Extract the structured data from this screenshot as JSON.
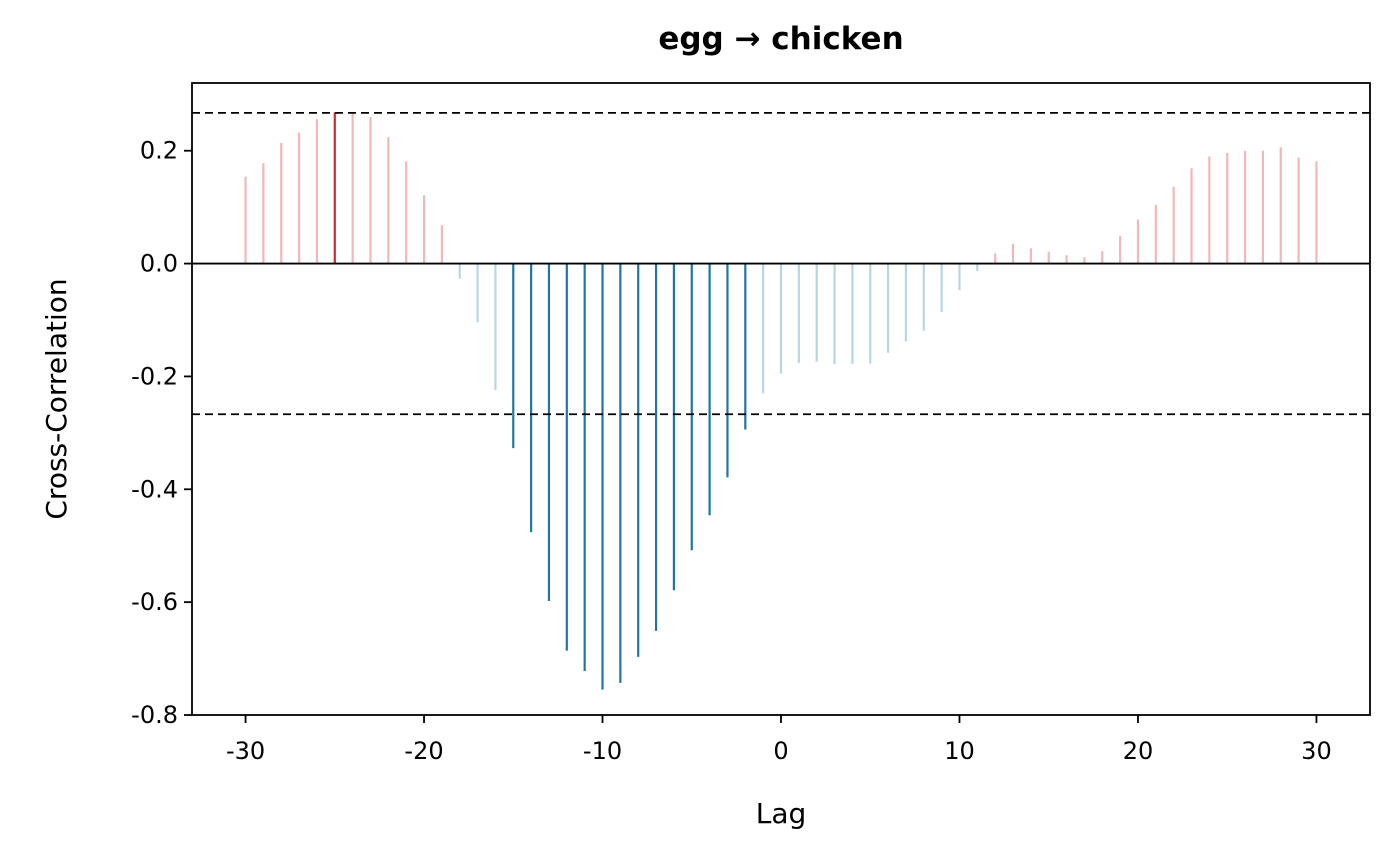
{
  "chart_data": {
    "type": "bar",
    "title": "egg → chicken",
    "xlabel": "Lag",
    "ylabel": "Cross-Correlation",
    "xlim": [
      -33,
      33
    ],
    "ylim": [
      -0.8,
      0.32
    ],
    "xticks": [
      -30,
      -20,
      -10,
      0,
      10,
      20,
      30
    ],
    "xtick_labels": [
      "-30",
      "-20",
      "-10",
      "0",
      "10",
      "20",
      "30"
    ],
    "yticks": [
      -0.8,
      -0.6,
      -0.4,
      -0.2,
      0.0,
      0.2
    ],
    "ytick_labels": [
      "-0.8",
      "-0.6",
      "-0.4",
      "-0.2",
      "0.0",
      "0.2"
    ],
    "confidence_bound": 0.267,
    "grid": false,
    "colors": {
      "positive_significant": "#d62728",
      "positive_insignificant": "#f0b8b8",
      "negative_significant": "#1f77a0",
      "negative_insignificant": "#b8d6e2",
      "zero_line": "#000000",
      "bound_line": "#000000"
    },
    "lags": [
      -30,
      -29,
      -28,
      -27,
      -26,
      -25,
      -24,
      -23,
      -22,
      -21,
      -20,
      -19,
      -18,
      -17,
      -16,
      -15,
      -14,
      -13,
      -12,
      -11,
      -10,
      -9,
      -8,
      -7,
      -6,
      -5,
      -4,
      -3,
      -2,
      -1,
      0,
      1,
      2,
      3,
      4,
      5,
      6,
      7,
      8,
      9,
      10,
      11,
      12,
      13,
      14,
      15,
      16,
      17,
      18,
      19,
      20,
      21,
      22,
      23,
      24,
      25,
      26,
      27,
      28,
      29,
      30
    ],
    "values": [
      0.154,
      0.178,
      0.214,
      0.232,
      0.256,
      0.268,
      0.266,
      0.26,
      0.224,
      0.181,
      0.121,
      0.068,
      -0.027,
      -0.104,
      -0.224,
      -0.327,
      -0.476,
      -0.598,
      -0.686,
      -0.722,
      -0.755,
      -0.743,
      -0.697,
      -0.651,
      -0.579,
      -0.508,
      -0.446,
      -0.379,
      -0.294,
      -0.23,
      -0.195,
      -0.176,
      -0.174,
      -0.178,
      -0.178,
      -0.177,
      -0.158,
      -0.138,
      -0.119,
      -0.086,
      -0.047,
      -0.013,
      0.018,
      0.035,
      0.027,
      0.021,
      0.015,
      0.011,
      0.022,
      0.049,
      0.078,
      0.104,
      0.136,
      0.169,
      0.19,
      0.196,
      0.2,
      0.2,
      0.206,
      0.188,
      0.181
    ]
  }
}
